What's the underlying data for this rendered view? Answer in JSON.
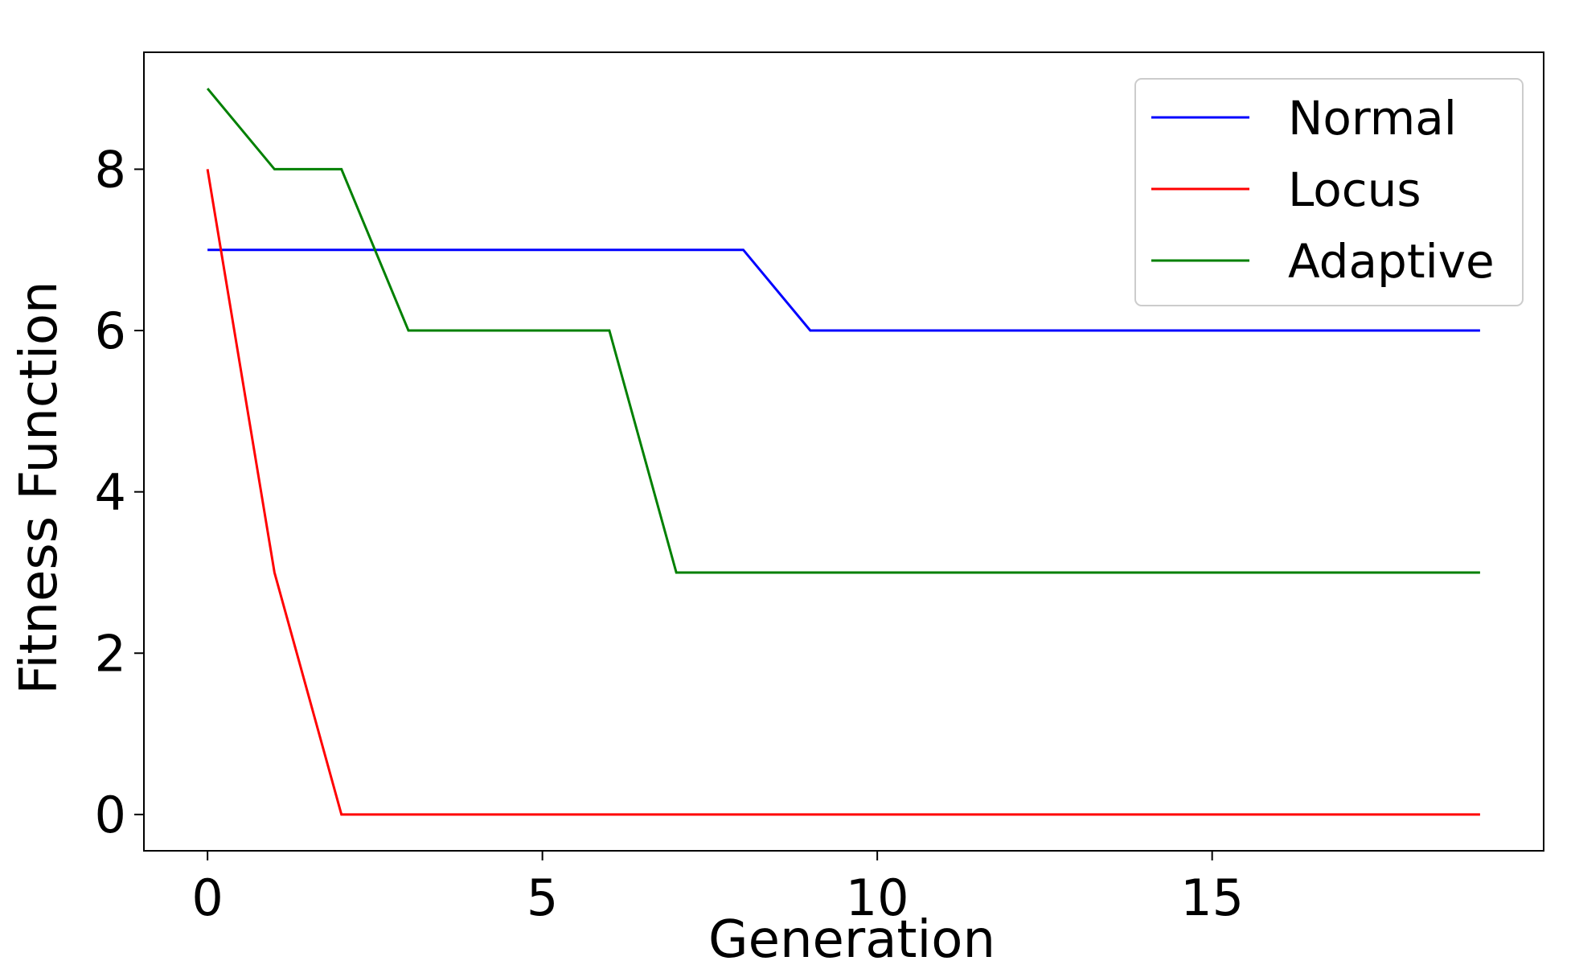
{
  "chart_data": {
    "type": "line",
    "title": "",
    "xlabel": "Generation",
    "ylabel": "Fitness Function",
    "xlim": [
      -0.95,
      19.95
    ],
    "ylim": [
      -0.45,
      9.45
    ],
    "xticks": [
      0,
      5,
      10,
      15
    ],
    "yticks": [
      0,
      2,
      4,
      6,
      8
    ],
    "grid": false,
    "legend_position": "top-right",
    "x": [
      0,
      1,
      2,
      3,
      4,
      5,
      6,
      7,
      8,
      9,
      10,
      11,
      12,
      13,
      14,
      15,
      16,
      17,
      18,
      19
    ],
    "series": [
      {
        "name": "Normal",
        "color": "#0000ff",
        "values": [
          7,
          7,
          7,
          7,
          7,
          7,
          7,
          7,
          7,
          6,
          6,
          6,
          6,
          6,
          6,
          6,
          6,
          6,
          6,
          6
        ]
      },
      {
        "name": "Locus",
        "color": "#ff0000",
        "values": [
          8,
          3,
          0,
          0,
          0,
          0,
          0,
          0,
          0,
          0,
          0,
          0,
          0,
          0,
          0,
          0,
          0,
          0,
          0,
          0
        ]
      },
      {
        "name": "Adaptive",
        "color": "#008000",
        "values": [
          9,
          8,
          8,
          6,
          6,
          6,
          6,
          3,
          3,
          3,
          3,
          3,
          3,
          3,
          3,
          3,
          3,
          3,
          3,
          3
        ]
      }
    ]
  }
}
